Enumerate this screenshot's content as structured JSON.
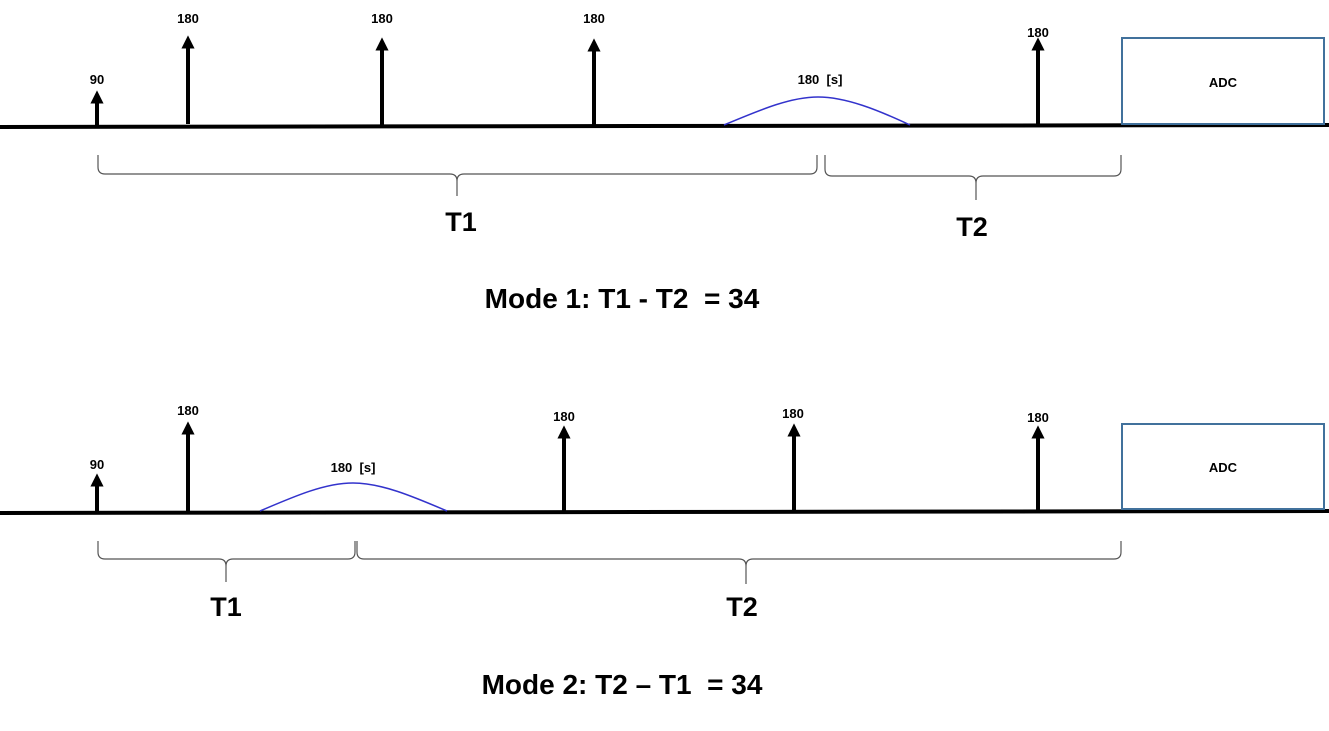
{
  "colors": {
    "line": "#000000",
    "sel_pulse": "#3333cc",
    "adc_border": "#41719c"
  },
  "icons": {
    "pulse": "upward-arrow",
    "selective_pulse": "half-sine-lobe",
    "bracket": "curly-brace"
  },
  "panel1": {
    "pulses": [
      "90",
      "180",
      "180",
      "180",
      "180"
    ],
    "selective_pulse": "180  [s]",
    "adc": "ADC",
    "intervals": [
      "T1",
      "T2"
    ],
    "caption": "Mode 1: T1 - T2  = 34"
  },
  "panel2": {
    "pulses": [
      "90",
      "180",
      "180",
      "180",
      "180"
    ],
    "selective_pulse": "180  [s]",
    "adc": "ADC",
    "intervals": [
      "T1",
      "T2"
    ],
    "caption": "Mode 2: T2 – T1  = 34"
  }
}
